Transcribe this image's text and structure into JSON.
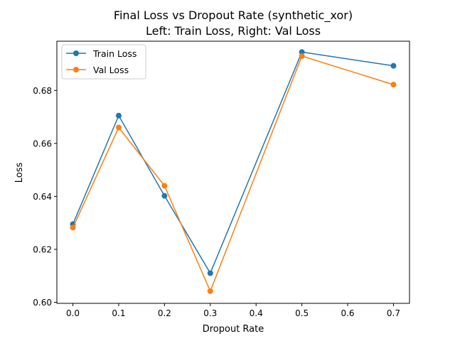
{
  "chart_data": {
    "type": "line",
    "title": "Final Loss vs Dropout Rate (synthetic_xor)",
    "subtitle": "Left: Train Loss, Right: Val Loss",
    "xlabel": "Dropout Rate",
    "ylabel": "Loss",
    "x": [
      0.0,
      0.1,
      0.2,
      0.3,
      0.5,
      0.7
    ],
    "xlim": [
      -0.035,
      0.735
    ],
    "ylim": [
      0.5996,
      0.6986
    ],
    "xticks": [
      0.0,
      0.1,
      0.2,
      0.3,
      0.4,
      0.5,
      0.6,
      0.7
    ],
    "xtick_labels": [
      "0.0",
      "0.1",
      "0.2",
      "0.3",
      "0.4",
      "0.5",
      "0.6",
      "0.7"
    ],
    "yticks": [
      0.6,
      0.62,
      0.64,
      0.66,
      0.68
    ],
    "ytick_labels": [
      "0.60",
      "0.62",
      "0.64",
      "0.66",
      "0.68"
    ],
    "grid": false,
    "legend_position": "top-left",
    "series": [
      {
        "name": "Train Loss",
        "color": "#1f77b4",
        "marker": "circle",
        "values": [
          0.6295,
          0.6705,
          0.6402,
          0.611,
          0.6945,
          0.6893
        ]
      },
      {
        "name": "Val Loss",
        "color": "#ff7f0e",
        "marker": "circle",
        "values": [
          0.6282,
          0.666,
          0.644,
          0.6042,
          0.693,
          0.6822
        ]
      }
    ]
  }
}
